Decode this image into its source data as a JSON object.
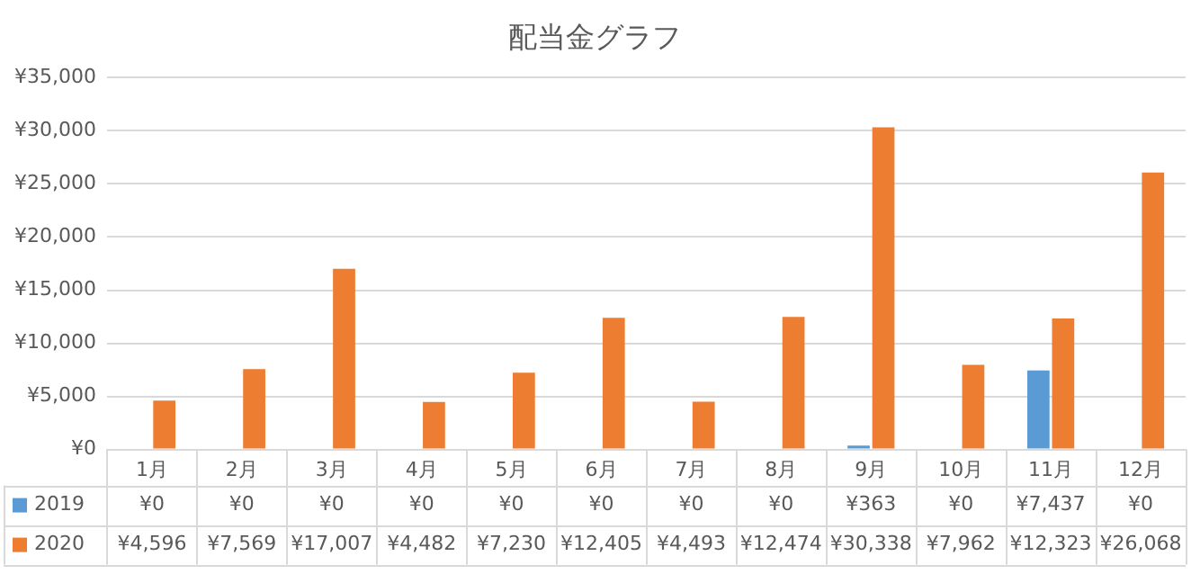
{
  "chart_data": {
    "type": "bar",
    "title": "配当金グラフ",
    "categories": [
      "1月",
      "2月",
      "3月",
      "4月",
      "5月",
      "6月",
      "7月",
      "8月",
      "9月",
      "10月",
      "11月",
      "12月"
    ],
    "series": [
      {
        "name": "2019",
        "color": "#5b9bd5",
        "values": [
          0,
          0,
          0,
          0,
          0,
          0,
          0,
          0,
          363,
          0,
          7437,
          0
        ],
        "value_labels": [
          "¥0",
          "¥0",
          "¥0",
          "¥0",
          "¥0",
          "¥0",
          "¥0",
          "¥0",
          "¥363",
          "¥0",
          "¥7,437",
          "¥0"
        ]
      },
      {
        "name": "2020",
        "color": "#ed7d31",
        "values": [
          4596,
          7569,
          17007,
          4482,
          7230,
          12405,
          4493,
          12474,
          30338,
          7962,
          12323,
          26068
        ],
        "value_labels": [
          "¥4,596",
          "¥7,569",
          "¥17,007",
          "¥4,482",
          "¥7,230",
          "¥12,405",
          "¥4,493",
          "¥12,474",
          "¥30,338",
          "¥7,962",
          "¥12,323",
          "¥26,068"
        ]
      }
    ],
    "ylim": [
      0,
      35000
    ],
    "yticks": [
      {
        "value": 0,
        "label": "¥0"
      },
      {
        "value": 5000,
        "label": "¥5,000"
      },
      {
        "value": 10000,
        "label": "¥10,000"
      },
      {
        "value": 15000,
        "label": "¥15,000"
      },
      {
        "value": 20000,
        "label": "¥20,000"
      },
      {
        "value": 25000,
        "label": "¥25,000"
      },
      {
        "value": 30000,
        "label": "¥30,000"
      },
      {
        "value": 35000,
        "label": "¥35,000"
      }
    ],
    "grid": "y",
    "legend": "bottom"
  }
}
